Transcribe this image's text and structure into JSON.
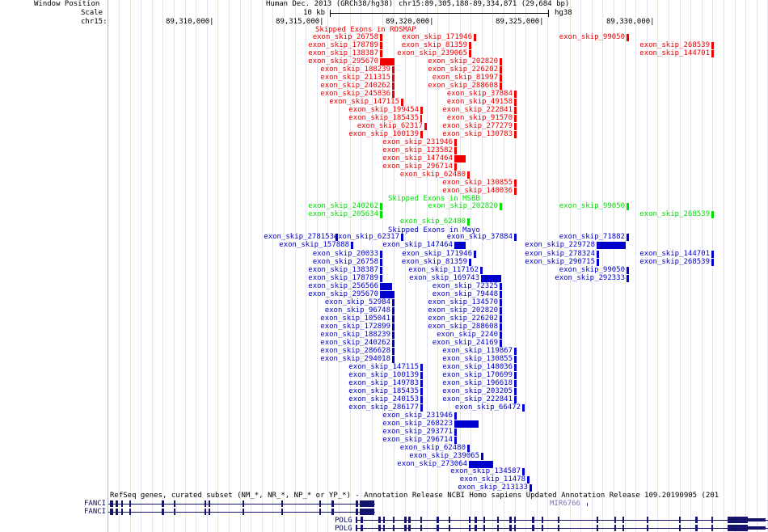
{
  "header": {
    "window_position_label": "Window Position",
    "scale_label": "Scale",
    "chrom_label": "chr15:",
    "assembly": "Human Dec. 2013 (GRCh38/hg38)",
    "position": "chr15:89,305,188-89,334,871 (29,684 bp)",
    "scale_value": "10 kb",
    "scale_db": "hg38",
    "ticks": [
      "89,310,000|",
      "89,315,000|",
      "89,320,000|",
      "89,325,000|",
      "89,330,000|"
    ]
  },
  "tracks": [
    {
      "title": "Skipped Exons in ROSMAP",
      "color": "#ee0000"
    },
    {
      "title": "Skipped Exons in MSBB",
      "color": "#00dd00"
    },
    {
      "title": "Skipped Exons in Mayo",
      "color": "#0000cc"
    }
  ],
  "features": {
    "rosmap": [
      {
        "label": "exon_skip_26758"
      },
      {
        "label": "exon_skip_171946"
      },
      {
        "label": "exon_skip_99050"
      },
      {
        "label": "exon_skip_178789"
      },
      {
        "label": "exon_skip_81359"
      },
      {
        "label": "exon_skip_268539"
      },
      {
        "label": "exon_skip_138387"
      },
      {
        "label": "exon_skip_239065"
      },
      {
        "label": "exon_skip_144701"
      },
      {
        "label": "exon_skip_295670"
      },
      {
        "label": "exon_skip_202820"
      },
      {
        "label": "exon_skip_188239"
      },
      {
        "label": "exon_skip_226202"
      },
      {
        "label": "exon_skip_211315"
      },
      {
        "label": "exon_skip_81997"
      },
      {
        "label": "exon_skip_240262"
      },
      {
        "label": "exon_skip_288608"
      },
      {
        "label": "exon_skip_245836"
      },
      {
        "label": "exon_skip_37884"
      },
      {
        "label": "exon_skip_147115"
      },
      {
        "label": "exon_skip_49158"
      },
      {
        "label": "exon_skip_199454"
      },
      {
        "label": "exon_skip_222841"
      },
      {
        "label": "exon_skip_185435"
      },
      {
        "label": "exon_skip_91570"
      },
      {
        "label": "exon_skip_62317"
      },
      {
        "label": "exon_skip_277279"
      },
      {
        "label": "exon_skip_100139"
      },
      {
        "label": "exon_skip_130783"
      },
      {
        "label": "exon_skip_231946"
      },
      {
        "label": "exon_skip_123582"
      },
      {
        "label": "exon_skip_147464"
      },
      {
        "label": "exon_skip_296714"
      },
      {
        "label": "exon_skip_62480"
      },
      {
        "label": "exon_skip_130855"
      },
      {
        "label": "exon_skip_148036"
      }
    ],
    "msbb": [
      {
        "label": "exon_skip_240262"
      },
      {
        "label": "exon_skip_202820"
      },
      {
        "label": "exon_skip_99050"
      },
      {
        "label": "exon_skip_205634"
      },
      {
        "label": "exon_skip_268539"
      },
      {
        "label": "exon_skip_62480"
      }
    ],
    "mayo": [
      {
        "label": "exon_skip_278153"
      },
      {
        "label": "exon_skip_62317"
      },
      {
        "label": "exon_skip_37884"
      },
      {
        "label": "exon_skip_71882"
      },
      {
        "label": "exon_skip_157888"
      },
      {
        "label": "exon_skip_147464"
      },
      {
        "label": "exon_skip_229728"
      },
      {
        "label": "exon_skip_20033"
      },
      {
        "label": "exon_skip_171946"
      },
      {
        "label": "exon_skip_278324"
      },
      {
        "label": "exon_skip_144701"
      },
      {
        "label": "exon_skip_26758"
      },
      {
        "label": "exon_skip_81359"
      },
      {
        "label": "exon_skip_290715"
      },
      {
        "label": "exon_skip_268539"
      },
      {
        "label": "exon_skip_138387"
      },
      {
        "label": "exon_skip_117162"
      },
      {
        "label": "exon_skip_99050"
      },
      {
        "label": "exon_skip_178789"
      },
      {
        "label": "exon_skip_169743"
      },
      {
        "label": "exon_skip_292333"
      },
      {
        "label": "exon_skip_256566"
      },
      {
        "label": "exon_skip_72325"
      },
      {
        "label": "exon_skip_295670"
      },
      {
        "label": "exon_skip_79448"
      },
      {
        "label": "exon_skip_52984"
      },
      {
        "label": "exon_skip_134570"
      },
      {
        "label": "exon_skip_96748"
      },
      {
        "label": "exon_skip_202820"
      },
      {
        "label": "exon_skip_105041"
      },
      {
        "label": "exon_skip_226202"
      },
      {
        "label": "exon_skip_172899"
      },
      {
        "label": "exon_skip_288608"
      },
      {
        "label": "exon_skip_188239"
      },
      {
        "label": "exon_skip_2240"
      },
      {
        "label": "exon_skip_240262"
      },
      {
        "label": "exon_skip_24169"
      },
      {
        "label": "exon_skip_286628"
      },
      {
        "label": "exon_skip_119867"
      },
      {
        "label": "exon_skip_294018"
      },
      {
        "label": "exon_skip_130855"
      },
      {
        "label": "exon_skip_147115"
      },
      {
        "label": "exon_skip_148036"
      },
      {
        "label": "exon_skip_100139"
      },
      {
        "label": "exon_skip_170699"
      },
      {
        "label": "exon_skip_149783"
      },
      {
        "label": "exon_skip_196618"
      },
      {
        "label": "exon_skip_185435"
      },
      {
        "label": "exon_skip_203205"
      },
      {
        "label": "exon_skip_240153"
      },
      {
        "label": "exon_skip_222841"
      },
      {
        "label": "exon_skip_286177"
      },
      {
        "label": "exon_skip_66472"
      },
      {
        "label": "exon_skip_231946"
      },
      {
        "label": "exon_skip_268223"
      },
      {
        "label": "exon_skip_293771"
      },
      {
        "label": "exon_skip_296714"
      },
      {
        "label": "exon_skip_62480"
      },
      {
        "label": "exon_skip_239065"
      },
      {
        "label": "exon_skip_273064"
      },
      {
        "label": "exon_skip_134587"
      },
      {
        "label": "exon_skip_11478"
      },
      {
        "label": "exon_skip_213133"
      }
    ]
  },
  "genes": {
    "title": "RefSeq genes, curated subset (NM_*, NR_*, NP_* or YP_*) - Annotation Release NCBI Homo sapiens Updated Annotation Release 109.20190905 (201",
    "fanci_1": "FANCI",
    "fanci_2": "FANCI",
    "mir": "MIR6766",
    "polg_1": "POLG",
    "polg_2": "POLG"
  },
  "colors": {
    "rosmap": "#ee0000",
    "msbb": "#00dd00",
    "mayo": "#0000cc",
    "grid": "#c8c8ff",
    "left_line": "#ff9999"
  }
}
